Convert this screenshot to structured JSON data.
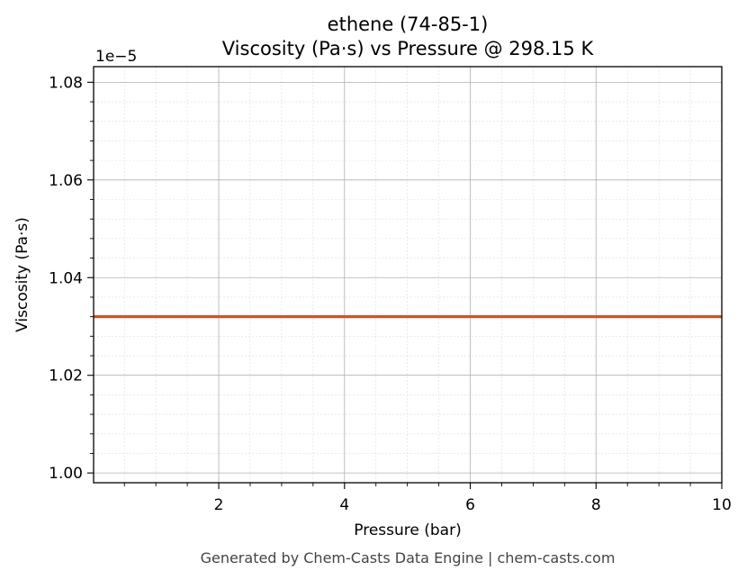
{
  "footer": "Generated by Chem-Casts Data Engine | chem-casts.com",
  "chart_data": {
    "type": "line",
    "title_line1": "ethene (74-85-1)",
    "title_line2": "Viscosity (Pa·s) vs Pressure @ 298.15 K",
    "xlabel": "Pressure (bar)",
    "ylabel": "Viscosity (Pa·s)",
    "y_offset_label": "1e−5",
    "xlim": [
      0.01,
      10
    ],
    "ylim": [
      0.998,
      1.0832
    ],
    "x_ticks": [
      2,
      4,
      6,
      8,
      10
    ],
    "x_tick_labels": [
      "2",
      "4",
      "6",
      "8",
      "10"
    ],
    "y_ticks": [
      1.0,
      1.02,
      1.04,
      1.06,
      1.08
    ],
    "y_tick_labels": [
      "1.00",
      "1.02",
      "1.04",
      "1.06",
      "1.08"
    ],
    "grid": true,
    "series": [
      {
        "color": "#c9562a",
        "x": [
          0.01,
          1,
          2,
          3,
          4,
          5,
          6,
          7,
          8,
          9,
          10
        ],
        "y": [
          1.032,
          1.032,
          1.032,
          1.032,
          1.032,
          1.032,
          1.032,
          1.032,
          1.032,
          1.032,
          1.032
        ]
      }
    ]
  }
}
